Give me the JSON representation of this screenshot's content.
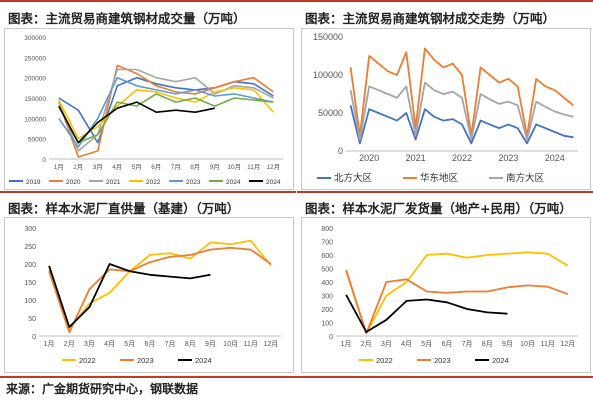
{
  "source": "来源：广金期货研究中心，钢联数据",
  "months": [
    "1月",
    "2月",
    "3月",
    "4月",
    "5月",
    "6月",
    "7月",
    "8月",
    "9月",
    "10月",
    "11月",
    "12月"
  ],
  "chart_data": [
    {
      "type": "line",
      "title": "图表：主流贸易商建筑钢材成交量（万吨）",
      "ylim": [
        0,
        300000
      ],
      "yticks": [
        0,
        50000,
        100000,
        150000,
        200000,
        250000,
        300000
      ],
      "legend_position": "bottom",
      "series": [
        {
          "name": "2019",
          "color": "#4472c4",
          "values": [
            150000,
            120000,
            40000,
            180000,
            200000,
            185000,
            175000,
            170000,
            175000,
            190000,
            185000,
            155000
          ]
        },
        {
          "name": "2020",
          "color": "#ed7d31",
          "values": [
            140000,
            5000,
            20000,
            230000,
            210000,
            180000,
            165000,
            160000,
            175000,
            190000,
            200000,
            165000
          ]
        },
        {
          "name": "2021",
          "color": "#a5a5a5",
          "values": [
            140000,
            20000,
            60000,
            220000,
            220000,
            200000,
            190000,
            200000,
            160000,
            180000,
            175000,
            150000
          ]
        },
        {
          "name": "2022",
          "color": "#ffc000",
          "values": [
            145000,
            50000,
            80000,
            130000,
            170000,
            165000,
            150000,
            140000,
            165000,
            175000,
            170000,
            115000
          ]
        },
        {
          "name": "2023",
          "color": "#5b9bd5",
          "values": [
            100000,
            30000,
            100000,
            200000,
            180000,
            170000,
            160000,
            170000,
            155000,
            160000,
            150000,
            140000
          ]
        },
        {
          "name": "2024",
          "color": "#70ad47",
          "values": [
            130000,
            40000,
            60000,
            140000,
            130000,
            160000,
            140000,
            150000,
            130000,
            150000,
            145000,
            140000
          ]
        },
        {
          "name": "2024",
          "color": "#000000",
          "values": [
            130000,
            40000,
            90000,
            125000,
            140000,
            115000,
            120000,
            115000,
            125000,
            null,
            null,
            null
          ]
        }
      ]
    },
    {
      "type": "line",
      "title": "图表：主流贸易商建筑钢材成交走势（万吨）",
      "ylim": [
        0,
        150000
      ],
      "yticks": [
        0,
        50000,
        100000,
        150000
      ],
      "xticks": [
        "2020",
        "2021",
        "2022",
        "2023",
        "2024"
      ],
      "legend_position": "bottom",
      "series": [
        {
          "name": "北方大区",
          "color": "#4472c4",
          "values": [
            60000,
            10000,
            55000,
            50000,
            45000,
            40000,
            50000,
            15000,
            55000,
            45000,
            40000,
            42000,
            35000,
            10000,
            40000,
            35000,
            30000,
            35000,
            30000,
            10000,
            35000,
            30000,
            25000,
            20000,
            18000
          ]
        },
        {
          "name": "华东地区",
          "color": "#ed7d31",
          "values": [
            110000,
            20000,
            125000,
            115000,
            105000,
            100000,
            130000,
            30000,
            135000,
            120000,
            110000,
            115000,
            100000,
            20000,
            110000,
            100000,
            90000,
            95000,
            85000,
            20000,
            95000,
            85000,
            80000,
            70000,
            60000
          ]
        },
        {
          "name": "南方大区",
          "color": "#a5a5a5",
          "values": [
            80000,
            15000,
            85000,
            80000,
            75000,
            70000,
            85000,
            20000,
            90000,
            80000,
            75000,
            78000,
            70000,
            15000,
            75000,
            68000,
            62000,
            65000,
            60000,
            15000,
            65000,
            58000,
            52000,
            48000,
            45000
          ]
        }
      ]
    },
    {
      "type": "line",
      "title": "图表：样本水泥厂直供量（基建）（万吨）",
      "ylim": [
        0,
        300
      ],
      "yticks": [
        0,
        50,
        100,
        150,
        200,
        250,
        300
      ],
      "legend_position": "bottom",
      "series": [
        {
          "name": "2022",
          "color": "#ffc000",
          "values": [
            185,
            20,
            90,
            120,
            180,
            225,
            230,
            215,
            260,
            255,
            265,
            195
          ]
        },
        {
          "name": "2023",
          "color": "#ed7d31",
          "values": [
            180,
            10,
            130,
            185,
            180,
            205,
            220,
            225,
            240,
            245,
            240,
            200
          ]
        },
        {
          "name": "2024",
          "color": "#000000",
          "values": [
            195,
            25,
            80,
            200,
            180,
            170,
            165,
            160,
            170,
            null,
            null,
            null
          ]
        }
      ]
    },
    {
      "type": "line",
      "title": "图表：样本水泥厂发货量（地产+民用）（万吨）",
      "ylim": [
        0,
        800
      ],
      "yticks": [
        0,
        100,
        200,
        300,
        400,
        500,
        600,
        700,
        800
      ],
      "legend_position": "bottom",
      "series": [
        {
          "name": "2022",
          "color": "#ffc000",
          "values": [
            480,
            20,
            300,
            400,
            600,
            610,
            580,
            600,
            610,
            620,
            610,
            520
          ]
        },
        {
          "name": "2023",
          "color": "#ed7d31",
          "values": [
            490,
            20,
            400,
            420,
            330,
            320,
            330,
            330,
            360,
            375,
            365,
            310
          ]
        },
        {
          "name": "2024",
          "color": "#000000",
          "values": [
            305,
            30,
            120,
            260,
            270,
            250,
            200,
            175,
            165,
            null,
            null,
            null
          ]
        }
      ]
    }
  ]
}
